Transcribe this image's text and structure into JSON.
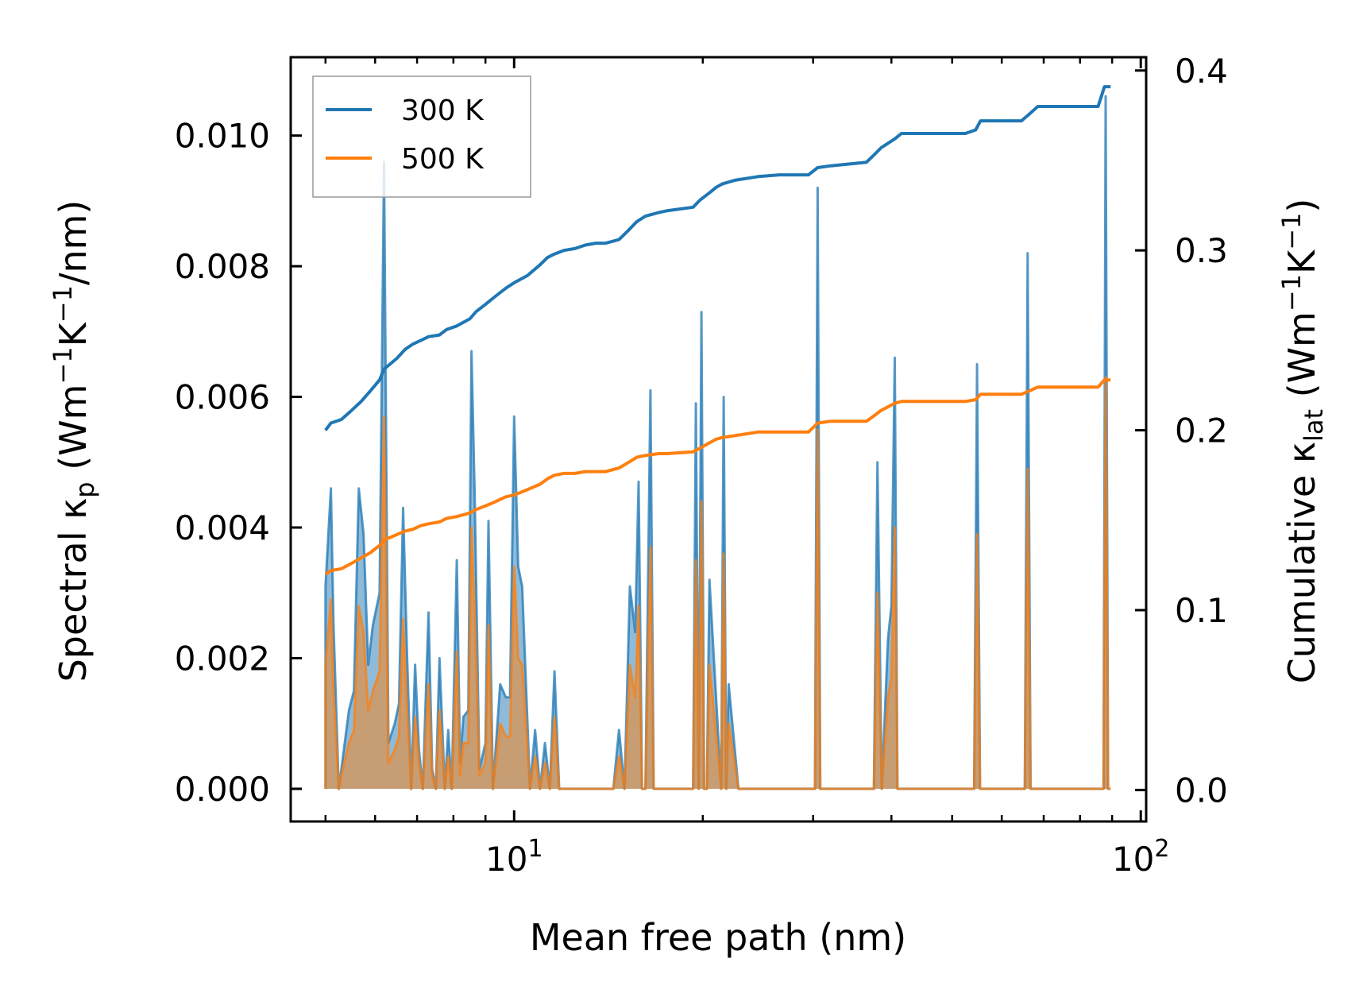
{
  "chart_data": {
    "type": "line",
    "xscale": "log",
    "xlabel": "Mean free path (nm)",
    "ylabel_left": {
      "main": "Spectral ",
      "kappa": "κ",
      "sub": "p",
      "units": " (Wm",
      "sup1": "−1",
      "mid": "K",
      "sup2": "−1",
      "tail": "/nm)"
    },
    "ylabel_right": {
      "main": "Cumulative ",
      "kappa": "κ",
      "sub": "lat",
      "units": " (Wm",
      "sup1": "−1",
      "mid": "K",
      "sup2": "−1",
      "tail": ")"
    },
    "xlim": [
      4.4,
      102
    ],
    "ylim_left": [
      -0.0005,
      0.0112
    ],
    "ylim_right": [
      -0.0175,
      0.4074
    ],
    "x_ticks": [
      {
        "value": 10,
        "base": "10",
        "exp": "1"
      },
      {
        "value": 100,
        "base": "10",
        "exp": "2"
      }
    ],
    "y_left_ticks": [
      {
        "value": 0.0,
        "label": "0.000"
      },
      {
        "value": 0.002,
        "label": "0.002"
      },
      {
        "value": 0.004,
        "label": "0.004"
      },
      {
        "value": 0.006,
        "label": "0.006"
      },
      {
        "value": 0.008,
        "label": "0.008"
      },
      {
        "value": 0.01,
        "label": "0.010"
      }
    ],
    "y_right_ticks": [
      {
        "value": 0.0,
        "label": "0.0"
      },
      {
        "value": 0.1,
        "label": "0.1"
      },
      {
        "value": 0.2,
        "label": "0.2"
      },
      {
        "value": 0.3,
        "label": "0.3"
      },
      {
        "value": 0.4,
        "label": "0.4"
      }
    ],
    "legend": [
      {
        "label": "300 K",
        "color": "#1f77b4"
      },
      {
        "label": "500 K",
        "color": "#ff7f0e"
      }
    ],
    "spectral_300K": {
      "x": [
        5.0,
        5.0,
        5.1,
        5.15,
        5.25,
        5.3,
        5.45,
        5.55,
        5.65,
        5.75,
        5.85,
        5.95,
        6.1,
        6.2,
        6.3,
        6.45,
        6.55,
        6.65,
        6.75,
        6.85,
        6.95,
        7.05,
        7.15,
        7.3,
        7.4,
        7.5,
        7.6,
        7.75,
        7.85,
        7.95,
        8.1,
        8.2,
        8.3,
        8.45,
        8.55,
        8.65,
        8.8,
        9.0,
        9.1,
        9.25,
        9.5,
        9.7,
        9.85,
        10.0,
        10.15,
        10.3,
        10.6,
        10.8,
        11.0,
        11.2,
        11.4,
        11.6,
        11.8,
        12.0,
        12.2,
        12.4,
        12.6,
        12.8,
        13.1,
        13.4,
        13.7,
        14.4,
        14.7,
        15.0,
        15.3,
        15.6,
        15.8,
        16.0,
        16.2,
        16.5,
        16.7,
        16.9,
        17.1,
        17.3,
        19.3,
        19.5,
        19.7,
        19.9,
        20.1,
        20.3,
        20.5,
        21.4,
        21.6,
        21.8,
        22.0,
        22.8,
        23.1,
        23.4,
        23.8,
        24.3,
        24.6,
        24.9,
        30.2,
        30.5,
        30.8,
        37.0,
        37.5,
        38.0,
        38.6,
        39.5,
        40.0,
        40.5,
        40.9,
        54.2,
        54.8,
        55.4,
        65.3,
        66.0,
        66.7,
        86.6,
        87.2,
        87.9,
        88.7,
        89.5
      ],
      "y": [
        0.0,
        0.0031,
        0.0046,
        0.0025,
        0.0,
        0.0003,
        0.0012,
        0.0015,
        0.0046,
        0.0039,
        0.0019,
        0.0025,
        0.003,
        0.0096,
        0.0007,
        0.001,
        0.0013,
        0.0043,
        0.002,
        0.0,
        0.0019,
        0.0006,
        0.0,
        0.0027,
        0.0003,
        0.0,
        0.002,
        0.0,
        0.0009,
        0.0,
        0.0035,
        0.0004,
        0.0011,
        0.0012,
        0.0067,
        0.0045,
        0.0003,
        0.0007,
        0.0041,
        0.0,
        0.0016,
        0.0014,
        0.0014,
        0.0057,
        0.0034,
        0.0031,
        0.0,
        0.0009,
        0.0,
        0.0007,
        0.0,
        0.0018,
        0.0,
        0.0,
        0.0,
        0.0,
        0.0,
        0.0,
        0.0,
        0.0,
        0.0,
        0.0,
        0.0009,
        0.0,
        0.0031,
        0.0024,
        0.0047,
        0.0,
        0.0,
        0.0061,
        0.0,
        0.0,
        0.0,
        0.0,
        0.0,
        0.0059,
        0.0,
        0.0073,
        0.0,
        0.0,
        0.0032,
        0.0,
        0.006,
        0.0,
        0.0016,
        0.0,
        0.0,
        0.0,
        0.0,
        0.0,
        0.0,
        0.0,
        0.0,
        0.0092,
        0.0,
        0.0,
        0.0,
        0.005,
        0.0,
        0.0023,
        0.0028,
        0.0066,
        0.0,
        0.0,
        0.0065,
        0.0,
        0.0,
        0.0082,
        0.0,
        0.0,
        0.0,
        0.0106,
        0.0,
        0.0
      ]
    },
    "spectral_500K": {
      "x": [
        5.0,
        5.0,
        5.1,
        5.15,
        5.25,
        5.3,
        5.45,
        5.55,
        5.65,
        5.75,
        5.85,
        5.95,
        6.1,
        6.2,
        6.3,
        6.45,
        6.55,
        6.65,
        6.75,
        6.85,
        6.95,
        7.05,
        7.15,
        7.3,
        7.4,
        7.5,
        7.6,
        7.75,
        7.85,
        7.95,
        8.1,
        8.2,
        8.3,
        8.45,
        8.55,
        8.65,
        8.8,
        9.0,
        9.1,
        9.25,
        9.5,
        9.7,
        9.85,
        10.0,
        10.15,
        10.3,
        10.6,
        10.8,
        11.0,
        11.2,
        11.4,
        11.6,
        11.8,
        12.0,
        12.2,
        12.4,
        12.6,
        12.8,
        13.1,
        13.4,
        13.7,
        14.4,
        14.7,
        15.0,
        15.3,
        15.6,
        15.8,
        16.0,
        16.2,
        16.5,
        16.7,
        16.9,
        17.1,
        17.3,
        19.3,
        19.5,
        19.7,
        19.9,
        20.1,
        20.3,
        20.5,
        21.4,
        21.6,
        21.8,
        22.0,
        22.8,
        23.1,
        23.4,
        23.8,
        24.3,
        24.6,
        24.9,
        30.2,
        30.5,
        30.8,
        37.0,
        37.5,
        38.0,
        38.6,
        39.5,
        40.0,
        40.5,
        40.9,
        54.2,
        54.8,
        55.4,
        65.3,
        66.0,
        66.7,
        86.6,
        87.2,
        87.9,
        88.7,
        89.5
      ],
      "y": [
        0.0,
        0.0019,
        0.0029,
        0.0015,
        0.0,
        0.0002,
        0.0007,
        0.0009,
        0.0028,
        0.0024,
        0.0012,
        0.0015,
        0.0018,
        0.0057,
        0.0004,
        0.0006,
        0.0008,
        0.0026,
        0.0012,
        0.0,
        0.0011,
        0.0004,
        0.0,
        0.0016,
        0.0002,
        0.0,
        0.0012,
        0.0,
        0.0005,
        0.0,
        0.0021,
        0.0002,
        0.0007,
        0.0007,
        0.004,
        0.0027,
        0.0002,
        0.0004,
        0.0025,
        0.0,
        0.001,
        0.0008,
        0.0008,
        0.0034,
        0.002,
        0.0019,
        0.0,
        0.0005,
        0.0,
        0.0004,
        0.0,
        0.0011,
        0.0,
        0.0,
        0.0,
        0.0,
        0.0,
        0.0,
        0.0,
        0.0,
        0.0,
        0.0,
        0.0005,
        0.0,
        0.0019,
        0.0014,
        0.0028,
        0.0,
        0.0,
        0.0037,
        0.0,
        0.0,
        0.0,
        0.0,
        0.0,
        0.0035,
        0.0,
        0.0044,
        0.0,
        0.0,
        0.0019,
        0.0,
        0.0036,
        0.0,
        0.001,
        0.0,
        0.0,
        0.0,
        0.0,
        0.0,
        0.0,
        0.0,
        0.0,
        0.0055,
        0.0,
        0.0,
        0.0,
        0.003,
        0.0,
        0.0014,
        0.0017,
        0.004,
        0.0,
        0.0,
        0.0039,
        0.0,
        0.0,
        0.0049,
        0.0,
        0.0,
        0.0,
        0.0063,
        0.0,
        0.0
      ]
    },
    "cumulative_300K": {
      "x": [
        5.0,
        5.1,
        5.3,
        5.5,
        5.7,
        5.9,
        6.1,
        6.2,
        6.5,
        6.7,
        6.9,
        7.1,
        7.3,
        7.6,
        7.8,
        8.1,
        8.5,
        8.7,
        9.0,
        9.3,
        9.7,
        10.0,
        10.5,
        11.0,
        11.3,
        11.6,
        12.0,
        12.5,
        13.0,
        13.5,
        14.0,
        14.7,
        15.2,
        15.7,
        16.2,
        17.0,
        17.5,
        19.3,
        19.8,
        20.5,
        21.0,
        21.5,
        22.5,
        24.5,
        26.5,
        29.5,
        30.5,
        32.0,
        36.5,
        37.5,
        38.5,
        40.5,
        41.5,
        52.5,
        54.5,
        55.5,
        64.5,
        66.5,
        68.5,
        85.5,
        87.5,
        89.5
      ],
      "y": [
        0.2,
        0.204,
        0.206,
        0.211,
        0.216,
        0.222,
        0.228,
        0.234,
        0.24,
        0.245,
        0.248,
        0.25,
        0.252,
        0.253,
        0.256,
        0.258,
        0.262,
        0.266,
        0.27,
        0.274,
        0.279,
        0.282,
        0.286,
        0.292,
        0.296,
        0.298,
        0.3,
        0.301,
        0.303,
        0.304,
        0.304,
        0.306,
        0.311,
        0.316,
        0.319,
        0.321,
        0.322,
        0.324,
        0.328,
        0.332,
        0.335,
        0.337,
        0.339,
        0.341,
        0.342,
        0.342,
        0.346,
        0.347,
        0.349,
        0.353,
        0.357,
        0.362,
        0.365,
        0.365,
        0.367,
        0.372,
        0.372,
        0.376,
        0.38,
        0.38,
        0.391,
        0.391
      ]
    },
    "cumulative_500K": {
      "x": [
        5.0,
        5.1,
        5.3,
        5.5,
        5.7,
        5.9,
        6.1,
        6.2,
        6.5,
        6.7,
        6.9,
        7.1,
        7.3,
        7.6,
        7.8,
        8.1,
        8.5,
        8.7,
        9.0,
        9.3,
        9.7,
        10.0,
        10.5,
        11.0,
        11.3,
        11.6,
        12.0,
        12.5,
        13.0,
        13.5,
        14.0,
        14.7,
        15.2,
        15.7,
        16.2,
        17.0,
        17.5,
        19.3,
        19.8,
        20.5,
        21.0,
        21.5,
        22.5,
        24.5,
        26.5,
        29.5,
        30.5,
        32.0,
        36.5,
        37.5,
        38.5,
        40.5,
        41.5,
        52.5,
        54.5,
        55.5,
        64.5,
        66.5,
        68.5,
        85.5,
        87.5,
        89.5
      ],
      "y": [
        0.12,
        0.122,
        0.123,
        0.126,
        0.129,
        0.132,
        0.136,
        0.139,
        0.142,
        0.144,
        0.145,
        0.147,
        0.148,
        0.149,
        0.151,
        0.152,
        0.154,
        0.156,
        0.158,
        0.16,
        0.163,
        0.164,
        0.167,
        0.17,
        0.173,
        0.175,
        0.176,
        0.176,
        0.177,
        0.177,
        0.177,
        0.179,
        0.182,
        0.185,
        0.186,
        0.187,
        0.187,
        0.188,
        0.19,
        0.193,
        0.195,
        0.196,
        0.197,
        0.199,
        0.199,
        0.199,
        0.204,
        0.205,
        0.205,
        0.208,
        0.211,
        0.215,
        0.216,
        0.216,
        0.217,
        0.22,
        0.22,
        0.222,
        0.224,
        0.224,
        0.228,
        0.228
      ]
    }
  }
}
